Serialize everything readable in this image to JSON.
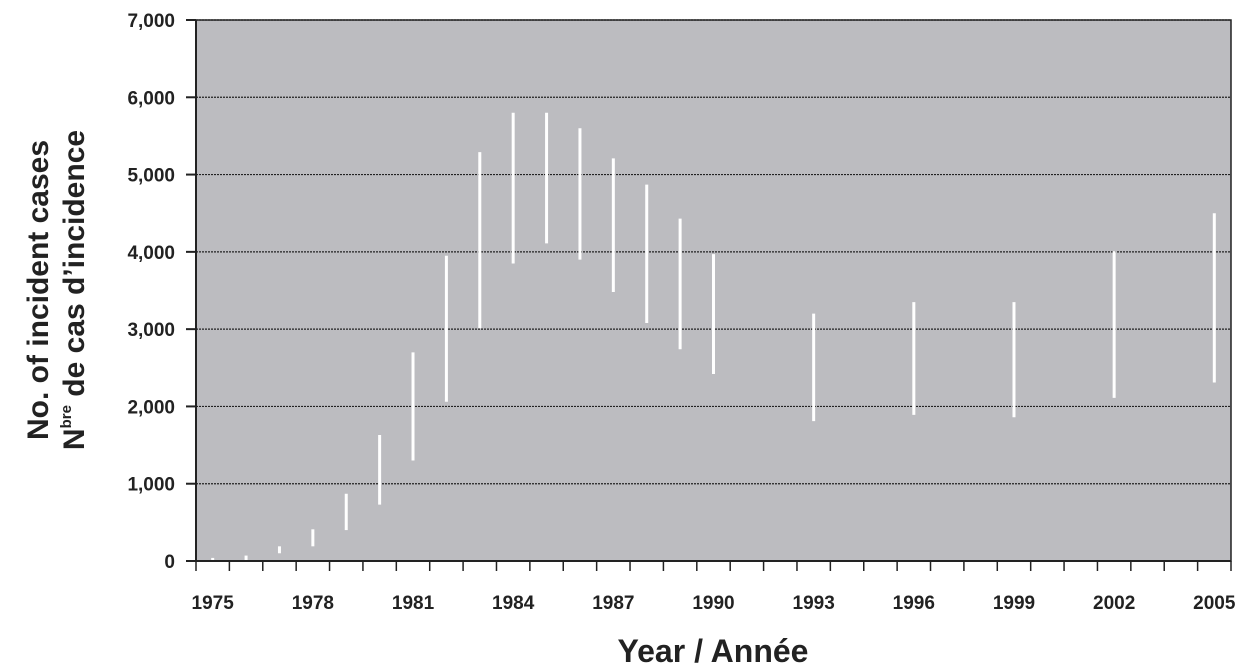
{
  "chart_data": {
    "type": "range-bar",
    "title": "",
    "xlabel": "Year / Année",
    "ylabel_lines": [
      "No. of incident cases",
      "N",
      "bre",
      " de cas d’incidence"
    ],
    "ylim": [
      0,
      7000
    ],
    "xlim": [
      1974.5,
      2005.5
    ],
    "y_ticks": [
      0,
      1000,
      2000,
      3000,
      4000,
      5000,
      6000,
      7000
    ],
    "y_tick_labels": [
      "0",
      "1,000",
      "2,000",
      "3,000",
      "4,000",
      "5,000",
      "6,000",
      "7,000"
    ],
    "x_tick_labels": [
      "1975",
      "1978",
      "1981",
      "1984",
      "1987",
      "1990",
      "1993",
      "1996",
      "1999",
      "2002",
      "2005"
    ],
    "x_tick_values": [
      1975,
      1978,
      1981,
      1984,
      1987,
      1990,
      1993,
      1996,
      1999,
      2002,
      2005
    ],
    "grid": true,
    "colors": {
      "plot_background": "#bcbcc0",
      "range_bar": "#ffffff",
      "grid": "#222222",
      "axis": "#222222",
      "text": "#222222"
    },
    "series": [
      {
        "points": [
          {
            "x": 1975,
            "low": 0,
            "high": 40
          },
          {
            "x": 1976,
            "low": 10,
            "high": 70
          },
          {
            "x": 1977,
            "low": 100,
            "high": 190
          },
          {
            "x": 1978,
            "low": 190,
            "high": 410
          },
          {
            "x": 1979,
            "low": 400,
            "high": 870
          },
          {
            "x": 1980,
            "low": 730,
            "high": 1630
          },
          {
            "x": 1981,
            "low": 1300,
            "high": 2700
          },
          {
            "x": 1982,
            "low": 2060,
            "high": 3950
          },
          {
            "x": 1983,
            "low": 3010,
            "high": 5290
          },
          {
            "x": 1984,
            "low": 3850,
            "high": 5800
          },
          {
            "x": 1985,
            "low": 4110,
            "high": 5800
          },
          {
            "x": 1986,
            "low": 3900,
            "high": 5600
          },
          {
            "x": 1987,
            "low": 3480,
            "high": 5210
          },
          {
            "x": 1988,
            "low": 3080,
            "high": 4870
          },
          {
            "x": 1989,
            "low": 2740,
            "high": 4430
          },
          {
            "x": 1990,
            "low": 2420,
            "high": 3970
          },
          {
            "x": 1993,
            "low": 1810,
            "high": 3200
          },
          {
            "x": 1996,
            "low": 1890,
            "high": 3350
          },
          {
            "x": 1999,
            "low": 1860,
            "high": 3350
          },
          {
            "x": 2002,
            "low": 2110,
            "high": 4010
          },
          {
            "x": 2005,
            "low": 2310,
            "high": 4500
          }
        ]
      }
    ]
  }
}
